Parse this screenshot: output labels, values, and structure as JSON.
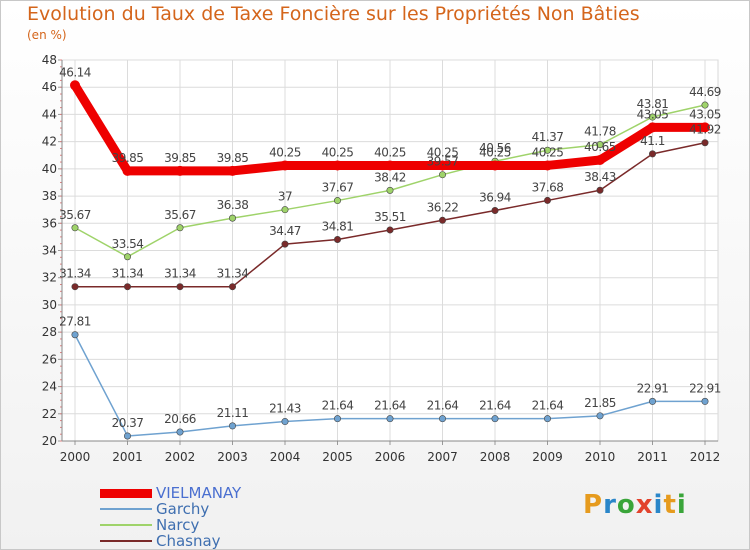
{
  "header": {
    "title": "Evolution du Taux de Taxe Foncière sur les Propriétés Non Bâties",
    "unit": "(en %)"
  },
  "logo": {
    "letters": [
      "P",
      "r",
      "o",
      "x",
      "i",
      "t",
      "i"
    ],
    "colors": [
      "#e69b1e",
      "#2a86c9",
      "#3aa53a",
      "#e2432d",
      "#2a86c9",
      "#e69b1e",
      "#3aa53a"
    ]
  },
  "chart_data": {
    "type": "line",
    "title": "Evolution du Taux de Taxe Foncière sur les Propriétés Non Bâties",
    "ylabel": "(en %)",
    "xlabel": "",
    "x": [
      2000,
      2001,
      2002,
      2003,
      2004,
      2005,
      2006,
      2007,
      2008,
      2009,
      2010,
      2011,
      2012
    ],
    "ylim": [
      20,
      48
    ],
    "yticks": [
      20,
      22,
      24,
      26,
      28,
      30,
      32,
      34,
      36,
      38,
      40,
      42,
      44,
      46,
      48
    ],
    "grid": true,
    "legend_position": "bottom-left",
    "series": [
      {
        "name": "VIELMANAY",
        "color": "#ee0000",
        "thick": true,
        "values": [
          46.14,
          39.85,
          39.85,
          39.85,
          40.25,
          40.25,
          40.25,
          40.25,
          40.25,
          40.25,
          40.65,
          43.05,
          43.05
        ],
        "labels": [
          "46.14",
          "39.85",
          "39.85",
          "39.85",
          "40.25",
          "40.25",
          "40.25",
          "40.25",
          "40.25",
          "40.25",
          "40.65",
          "43.05",
          "43.05"
        ]
      },
      {
        "name": "Garchy",
        "color": "#6fa2d0",
        "thick": false,
        "values": [
          27.81,
          20.37,
          20.66,
          21.11,
          21.43,
          21.64,
          21.64,
          21.64,
          21.64,
          21.64,
          21.85,
          22.91,
          22.91
        ],
        "labels": [
          "27.81",
          "20.37",
          "20.66",
          "21.11",
          "21.43",
          "21.64",
          "21.64",
          "21.64",
          "21.64",
          "21.64",
          "21.85",
          "22.91",
          "22.91"
        ]
      },
      {
        "name": "Narcy",
        "color": "#9fd36a",
        "thick": false,
        "values": [
          35.67,
          33.54,
          35.67,
          36.38,
          37.0,
          37.67,
          38.42,
          39.57,
          40.56,
          41.37,
          41.78,
          43.81,
          44.69
        ],
        "labels": [
          "35.67",
          "33.54",
          "35.67",
          "36.38",
          "37",
          "37.67",
          "38.42",
          "39.57",
          "40.56",
          "41.37",
          "41.78",
          "43.81",
          "44.69"
        ]
      },
      {
        "name": "Chasnay",
        "color": "#7a2a2a",
        "thick": false,
        "values": [
          31.34,
          31.34,
          31.34,
          31.34,
          34.47,
          34.81,
          35.51,
          36.22,
          36.94,
          37.68,
          38.43,
          41.1,
          41.92
        ],
        "labels": [
          "31.34",
          "31.34",
          "31.34",
          "31.34",
          "34.47",
          "34.81",
          "35.51",
          "36.22",
          "36.94",
          "37.68",
          "38.43",
          "41.1",
          "41.92"
        ]
      }
    ]
  }
}
